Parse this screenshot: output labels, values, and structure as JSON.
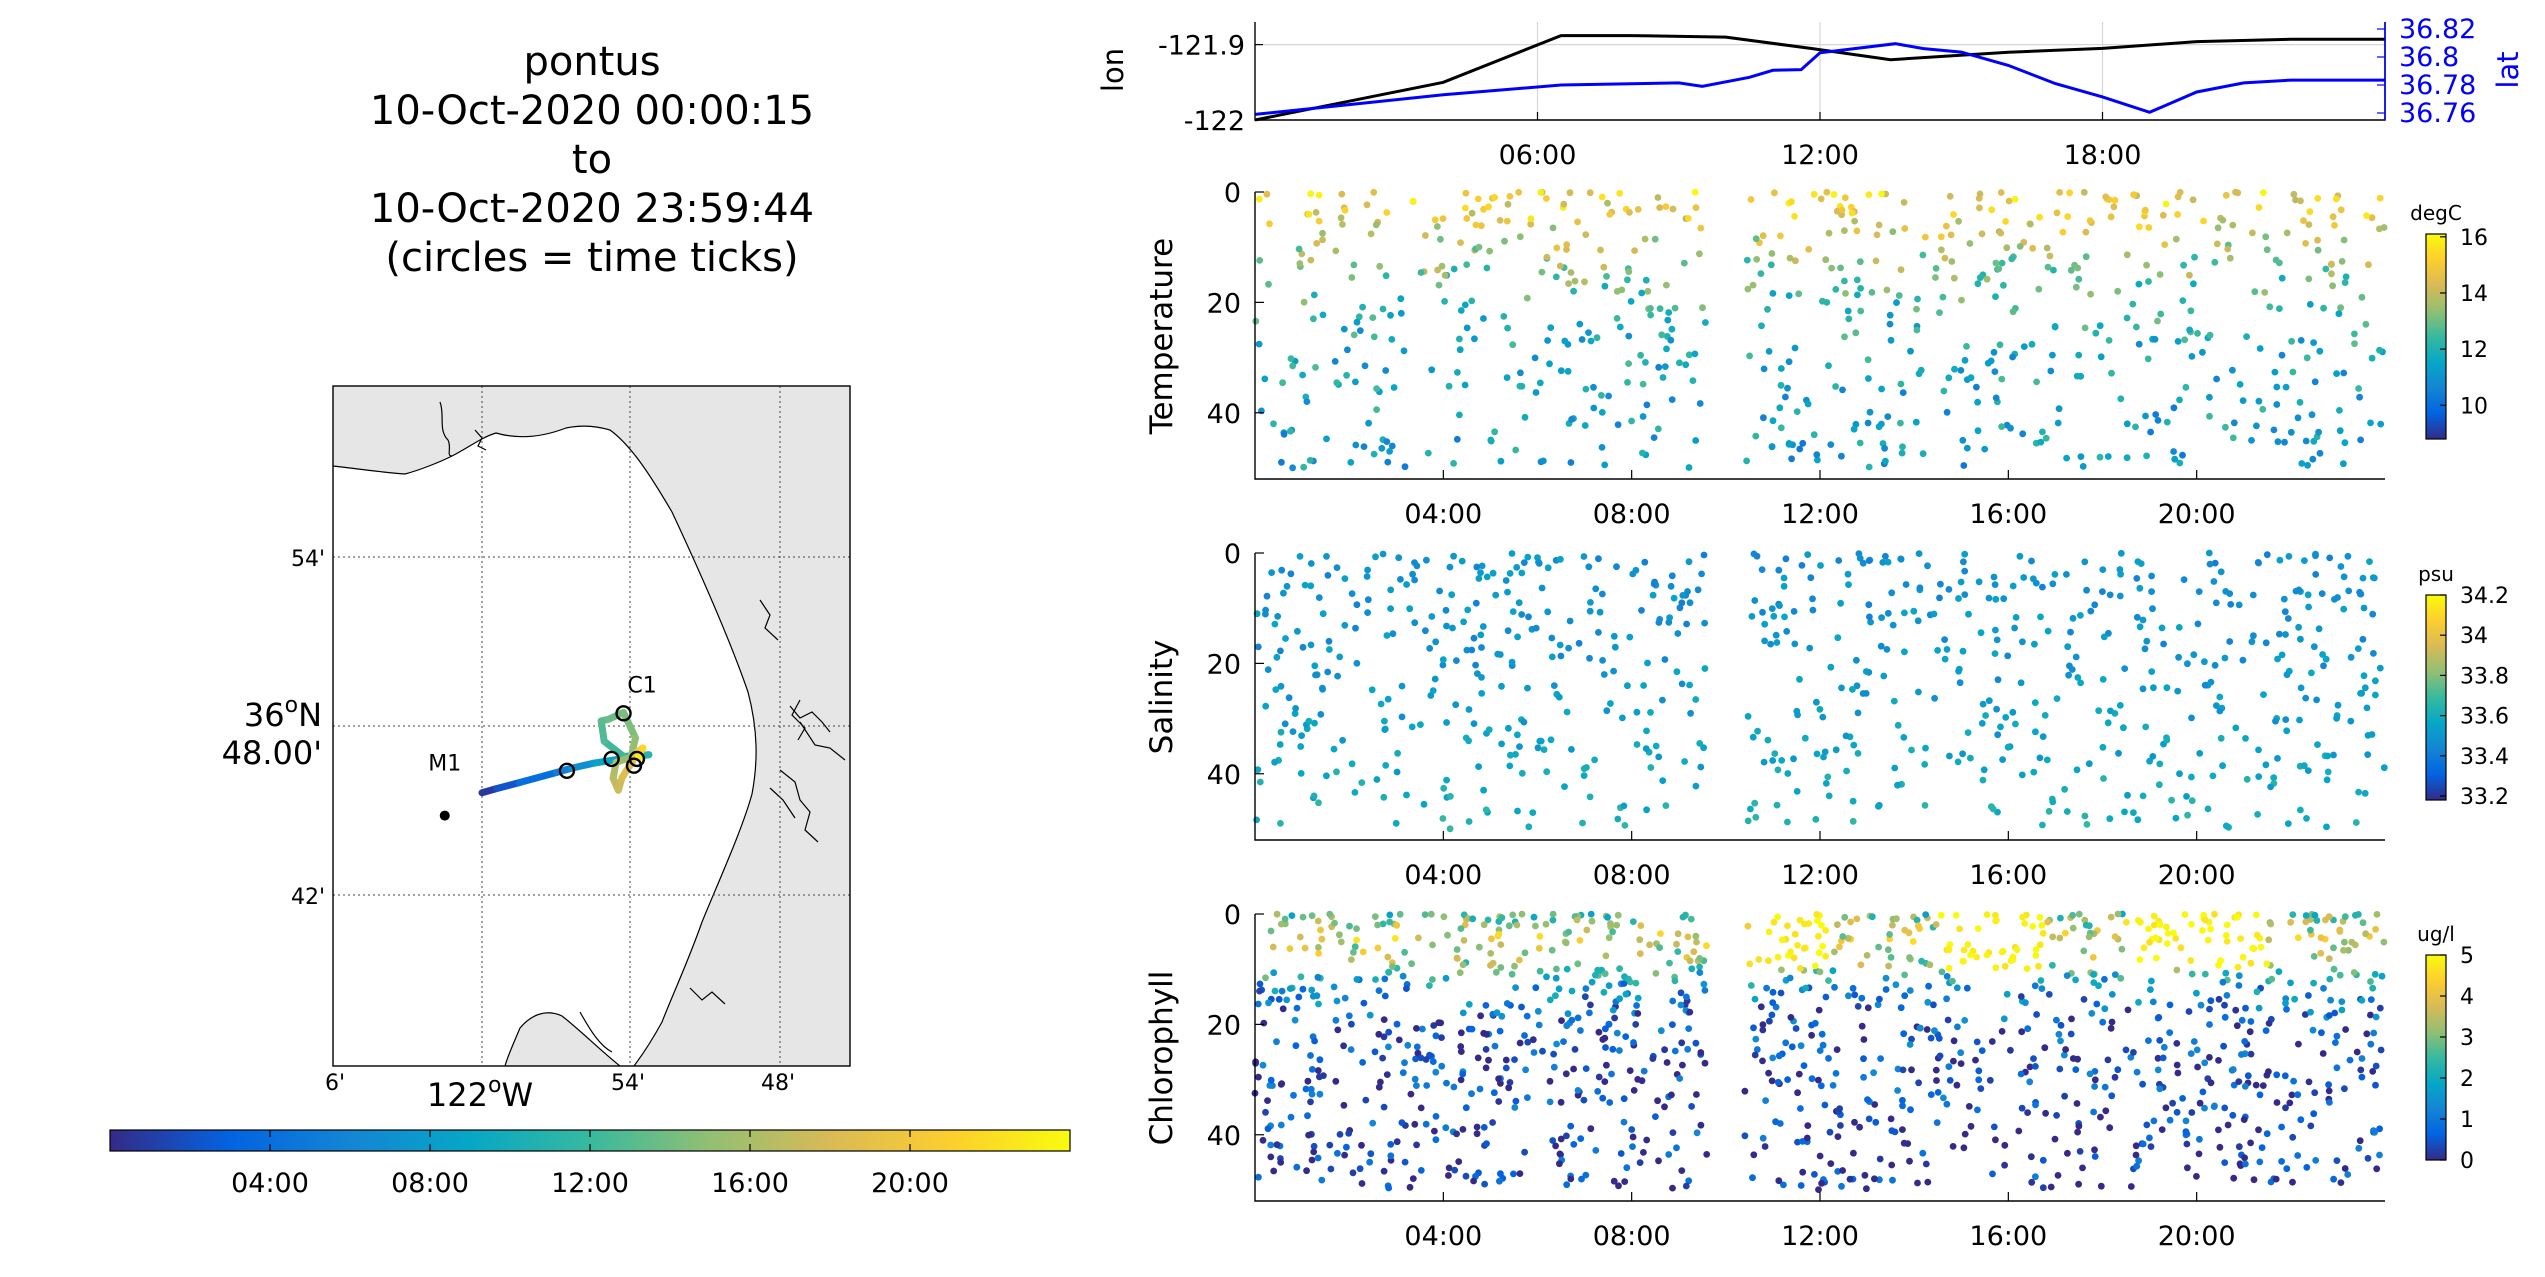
{
  "chart_data": [
    {
      "type": "map",
      "title_lines": [
        "pontus",
        "10-Oct-2020 00:00:15",
        "to",
        "10-Oct-2020 23:59:44",
        "(circles = time ticks)"
      ],
      "lon_tick_labels": [
        "6'",
        "122",
        "54'",
        "48'"
      ],
      "lon_deg_symbol": "o",
      "lon_hemisphere": "W",
      "lat_tick_labels": [
        "54'",
        "36",
        "48.00'",
        "42'"
      ],
      "lat_deg_symbol": "o",
      "lat_hemisphere": "N",
      "stations": [
        {
          "label": "M1",
          "lon": -122.025,
          "lat": 36.747
        },
        {
          "label": "C1",
          "lon": -121.906,
          "lat": 36.808
        }
      ],
      "track": [
        {
          "lon": -122.0,
          "lat": 36.7605,
          "hour": 0.0
        },
        {
          "lon": -121.99,
          "lat": 36.763,
          "hour": 1.5
        },
        {
          "lon": -121.975,
          "lat": 36.7665,
          "hour": 3.0
        },
        {
          "lon": -121.95,
          "lat": 36.7725,
          "hour": 5.0
        },
        {
          "lon": -121.94,
          "lat": 36.775,
          "hour": 6.0
        },
        {
          "lon": -121.925,
          "lat": 36.778,
          "hour": 7.5
        },
        {
          "lon": -121.9,
          "lat": 36.7815,
          "hour": 9.5
        },
        {
          "lon": -121.888,
          "lat": 36.783,
          "hour": 10.5
        },
        {
          "lon": -121.905,
          "lat": 36.782,
          "hour": 11.8
        },
        {
          "lon": -121.918,
          "lat": 36.791,
          "hour": 12.6
        },
        {
          "lon": -121.92,
          "lat": 36.803,
          "hour": 13.0
        },
        {
          "lon": -121.915,
          "lat": 36.804,
          "hour": 13.4
        },
        {
          "lon": -121.905,
          "lat": 36.808,
          "hour": 14.0
        },
        {
          "lon": -121.897,
          "lat": 36.793,
          "hour": 14.7
        },
        {
          "lon": -121.9,
          "lat": 36.7815,
          "hour": 15.2
        },
        {
          "lon": -121.91,
          "lat": 36.7785,
          "hour": 15.8
        },
        {
          "lon": -121.912,
          "lat": 36.769,
          "hour": 16.5
        },
        {
          "lon": -121.9085,
          "lat": 36.762,
          "hour": 17.2
        },
        {
          "lon": -121.906,
          "lat": 36.7695,
          "hour": 18.0
        },
        {
          "lon": -121.899,
          "lat": 36.779,
          "hour": 19.0
        },
        {
          "lon": -121.896,
          "lat": 36.7845,
          "hour": 20.0
        },
        {
          "lon": -121.892,
          "lat": 36.787,
          "hour": 21.0
        },
        {
          "lon": -121.895,
          "lat": 36.7825,
          "hour": 22.0
        },
        {
          "lon": -121.893,
          "lat": 36.7815,
          "hour": 23.99
        }
      ],
      "time_tick_circles": [
        {
          "lon": -121.943,
          "lat": 36.7735
        },
        {
          "lon": -121.905,
          "lat": 36.8075
        },
        {
          "lon": -121.913,
          "lat": 36.7805
        },
        {
          "lon": -121.898,
          "lat": 36.7765
        },
        {
          "lon": -121.896,
          "lat": 36.7805
        }
      ],
      "colorbar_tick_labels": [
        "04:00",
        "08:00",
        "12:00",
        "16:00",
        "20:00"
      ],
      "colorbar_range_hours": [
        0,
        24
      ]
    },
    {
      "type": "line",
      "ylabel_left": "lon",
      "ylabel_right": "lat",
      "left_ticks": [
        "-121.9",
        "-122"
      ],
      "right_ticks": [
        "36.82",
        "36.8",
        "36.78",
        "36.76"
      ],
      "right_axis_color": "#0000ff",
      "xtick_labels": [
        "06:00",
        "12:00",
        "18:00"
      ],
      "xlim_hours": [
        0,
        24
      ],
      "ylim_left": [
        -122.0,
        -121.87
      ],
      "ylim_right": [
        36.755,
        36.825
      ],
      "series": [
        {
          "name": "lon",
          "axis": "left",
          "color": "#000000",
          "x": [
            0,
            2,
            4,
            6.5,
            8,
            10,
            11.8,
            13.5,
            16,
            18,
            20,
            22,
            24
          ],
          "y": [
            -122.0,
            -121.975,
            -121.95,
            -121.888,
            -121.888,
            -121.89,
            -121.905,
            -121.92,
            -121.91,
            -121.905,
            -121.896,
            -121.893,
            -121.893
          ]
        },
        {
          "name": "lat",
          "axis": "right",
          "color": "#0000ff",
          "x": [
            0,
            2,
            4,
            6.5,
            9,
            9.5,
            10.5,
            11,
            11.6,
            12,
            13.6,
            14.2,
            15,
            16,
            17,
            18,
            19,
            20,
            21,
            22,
            24
          ],
          "y": [
            36.759,
            36.766,
            36.773,
            36.78,
            36.7815,
            36.779,
            36.7855,
            36.7905,
            36.791,
            36.803,
            36.8095,
            36.806,
            36.8035,
            36.794,
            36.781,
            36.7715,
            36.7605,
            36.775,
            36.7815,
            36.7835,
            36.7835
          ]
        }
      ]
    },
    {
      "type": "scatter",
      "ylabel": "Temperature",
      "colorbar_unit": "degC",
      "colorbar_ticks": [
        "16",
        "14",
        "12",
        "10"
      ],
      "clim": [
        8.8,
        16.1
      ],
      "ylim": [
        0,
        52
      ],
      "ytick_labels": [
        "0",
        "20",
        "40"
      ],
      "xtick_labels": [
        "04:00",
        "08:00",
        "12:00",
        "16:00",
        "20:00"
      ],
      "xlim_hours": [
        0,
        24
      ],
      "dive_hour_ranges": [
        [
          0,
          9.6
        ],
        [
          10.4,
          24
        ]
      ],
      "depth_max": 50,
      "depth_profile": [
        {
          "depth": 0,
          "value": 15.0
        },
        {
          "depth": 5,
          "value": 14.6
        },
        {
          "depth": 12,
          "value": 13.3
        },
        {
          "depth": 22,
          "value": 12.0
        },
        {
          "depth": 32,
          "value": 11.6
        },
        {
          "depth": 50,
          "value": 11.3
        }
      ]
    },
    {
      "type": "scatter",
      "ylabel": "Salinity",
      "colorbar_unit": "psu",
      "colorbar_ticks": [
        "34.2",
        "34",
        "33.8",
        "33.6",
        "33.4",
        "33.2"
      ],
      "clim": [
        33.18,
        34.2
      ],
      "ylim": [
        0,
        52
      ],
      "ytick_labels": [
        "0",
        "20",
        "40"
      ],
      "xtick_labels": [
        "04:00",
        "08:00",
        "12:00",
        "16:00",
        "20:00"
      ],
      "xlim_hours": [
        0,
        24
      ],
      "dive_hour_ranges": [
        [
          0,
          9.6
        ],
        [
          10.4,
          24
        ]
      ],
      "depth_max": 50,
      "depth_profile": [
        {
          "depth": 0,
          "value": 33.48
        },
        {
          "depth": 20,
          "value": 33.5
        },
        {
          "depth": 35,
          "value": 33.55
        },
        {
          "depth": 50,
          "value": 33.62
        }
      ]
    },
    {
      "type": "scatter",
      "ylabel": "Chlorophyll",
      "colorbar_unit": "ug/l",
      "colorbar_ticks": [
        "5",
        "4",
        "3",
        "2",
        "1",
        "0"
      ],
      "clim": [
        0,
        5
      ],
      "ylim": [
        0,
        52
      ],
      "ytick_labels": [
        "0",
        "20",
        "40"
      ],
      "xtick_labels": [
        "04:00",
        "08:00",
        "12:00",
        "16:00",
        "20:00"
      ],
      "xlim_hours": [
        0,
        24
      ],
      "dive_hour_ranges": [
        [
          0,
          9.6
        ],
        [
          10.4,
          24
        ]
      ],
      "depth_max": 50,
      "depth_profile": [
        {
          "depth": 0,
          "value": 2.6
        },
        {
          "depth": 4,
          "value": 3.8
        },
        {
          "depth": 8,
          "value": 3.2
        },
        {
          "depth": 13,
          "value": 1.4
        },
        {
          "depth": 20,
          "value": 0.5
        },
        {
          "depth": 50,
          "value": 0.15
        }
      ]
    }
  ]
}
